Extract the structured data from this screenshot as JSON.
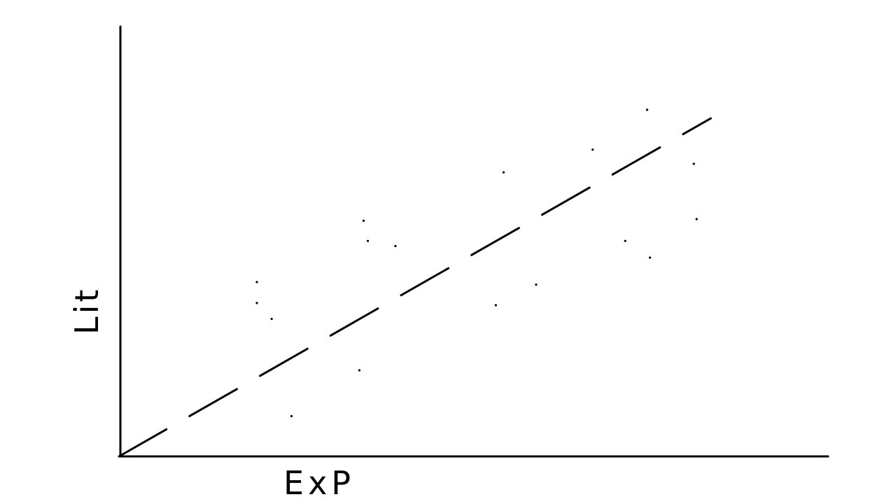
{
  "chart_data": {
    "type": "scatter",
    "title": "",
    "xlabel": "ExP",
    "ylabel": "Lit",
    "grid": false,
    "legend": "none",
    "xlim": [
      0,
      100
    ],
    "ylim": [
      0,
      100
    ],
    "axis_color": "#000000",
    "point_color": "#000000",
    "points": [
      {
        "x": 19.5,
        "y": 40.7
      },
      {
        "x": 19.5,
        "y": 35.8
      },
      {
        "x": 21.6,
        "y": 32.1
      },
      {
        "x": 24.4,
        "y": 9.4
      },
      {
        "x": 34.0,
        "y": 20.1
      },
      {
        "x": 34.6,
        "y": 55.0
      },
      {
        "x": 35.2,
        "y": 50.3
      },
      {
        "x": 39.1,
        "y": 49.1
      },
      {
        "x": 53.3,
        "y": 35.3
      },
      {
        "x": 54.4,
        "y": 66.3
      },
      {
        "x": 59.0,
        "y": 40.1
      },
      {
        "x": 67.0,
        "y": 71.6
      },
      {
        "x": 71.6,
        "y": 50.3
      },
      {
        "x": 74.7,
        "y": 80.9
      },
      {
        "x": 75.1,
        "y": 46.4
      },
      {
        "x": 81.3,
        "y": 68.3
      },
      {
        "x": 81.7,
        "y": 55.4
      }
    ],
    "trend_line": {
      "style": "dashed",
      "start": {
        "x": 0,
        "y": 0
      },
      "end": {
        "x": 83.7,
        "y": 78.9
      }
    }
  }
}
